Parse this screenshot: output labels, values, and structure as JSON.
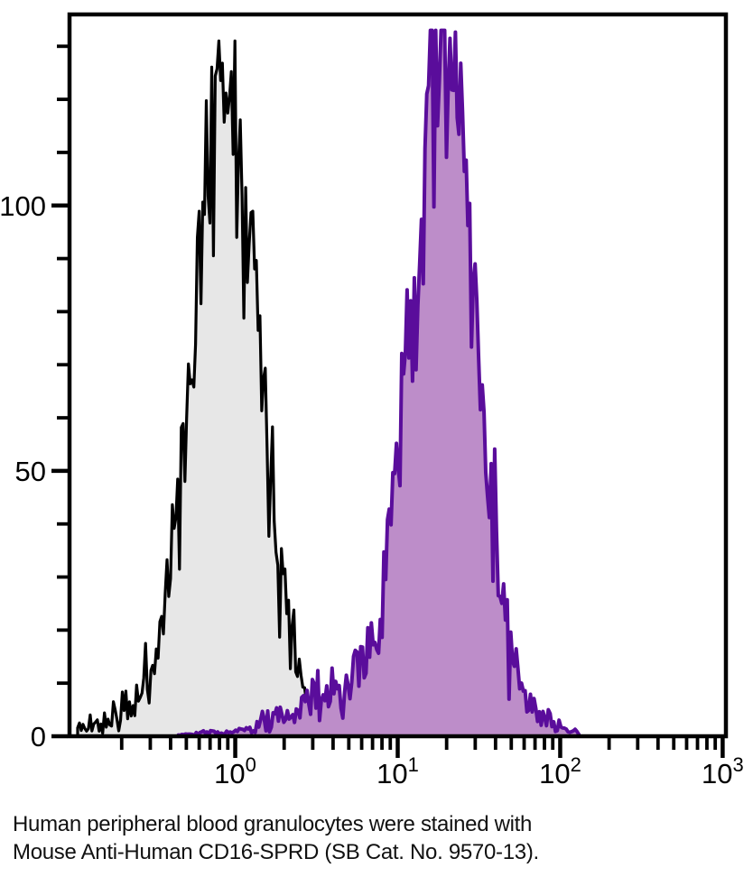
{
  "caption": {
    "line1": "Human peripheral blood granulocytes were stained with",
    "line2": "Mouse Anti-Human CD16-SPRD (SB Cat. No. 9570-13)."
  },
  "chart_data": {
    "type": "area",
    "subtype": "flow-cytometry-histogram-overlay",
    "title": "",
    "xlabel": "",
    "ylabel": "",
    "grid": false,
    "legend": "none",
    "x_axis": {
      "scale": "log10",
      "range_log10": [
        -1.02,
        3.02
      ],
      "label_base": "10",
      "major_tick_exponents": [
        0,
        1,
        2,
        3
      ],
      "minor_tick_mantissas": [
        2,
        3,
        4,
        5,
        6,
        7,
        8,
        9
      ],
      "minor_tick_decades": [
        -1,
        0,
        1,
        2
      ]
    },
    "y_axis": {
      "range": [
        0,
        136
      ],
      "major_ticks": [
        0,
        50,
        100
      ],
      "major_tick_labels": [
        "0",
        "50",
        "100"
      ],
      "minor_tick_step": 10,
      "minor_tick_max": 130
    },
    "axis_color": "#000000",
    "series": [
      {
        "id": "left-peak-black",
        "outline_color": "#000000",
        "fill_color": "#e7e7e7",
        "stroke_width": 3.2,
        "peak": {
          "center_log10": -0.05,
          "center_x": 0.9,
          "sigma_log10": 0.2,
          "height": 119
        },
        "shoulder": {
          "center_log10": -0.3,
          "sigma_log10": 0.35,
          "height": 6
        },
        "extent_log10": [
          -0.97,
          0.45
        ],
        "baseline_noise_segments": [
          [
            -0.97,
            0.45,
            1.2
          ]
        ],
        "poisson_noise_scale": 2.0,
        "clip_max": 131,
        "approx_peak_height_counts": 130,
        "seed": 11,
        "step_log10": 0.011
      },
      {
        "id": "right-peak-purple",
        "outline_color": "#5a0d9b",
        "fill_color": "#bd8dc9",
        "stroke_width": 4,
        "peak": {
          "center_log10": 1.29,
          "center_x": 19.5,
          "sigma_log10": 0.19,
          "height": 121
        },
        "shoulder": {
          "center_log10": 1.02,
          "sigma_log10": 0.42,
          "height": 11
        },
        "extent_log10": [
          -0.35,
          2.12
        ],
        "baseline_noise_segments": [
          [
            -0.35,
            0.1,
            0.9
          ],
          [
            0.1,
            2.0,
            2.6
          ],
          [
            2.0,
            2.12,
            1.0
          ]
        ],
        "poisson_noise_scale": 2.0,
        "clip_max": 133,
        "approx_peak_height_counts": 132,
        "seed": 29,
        "step_log10": 0.011
      }
    ]
  }
}
